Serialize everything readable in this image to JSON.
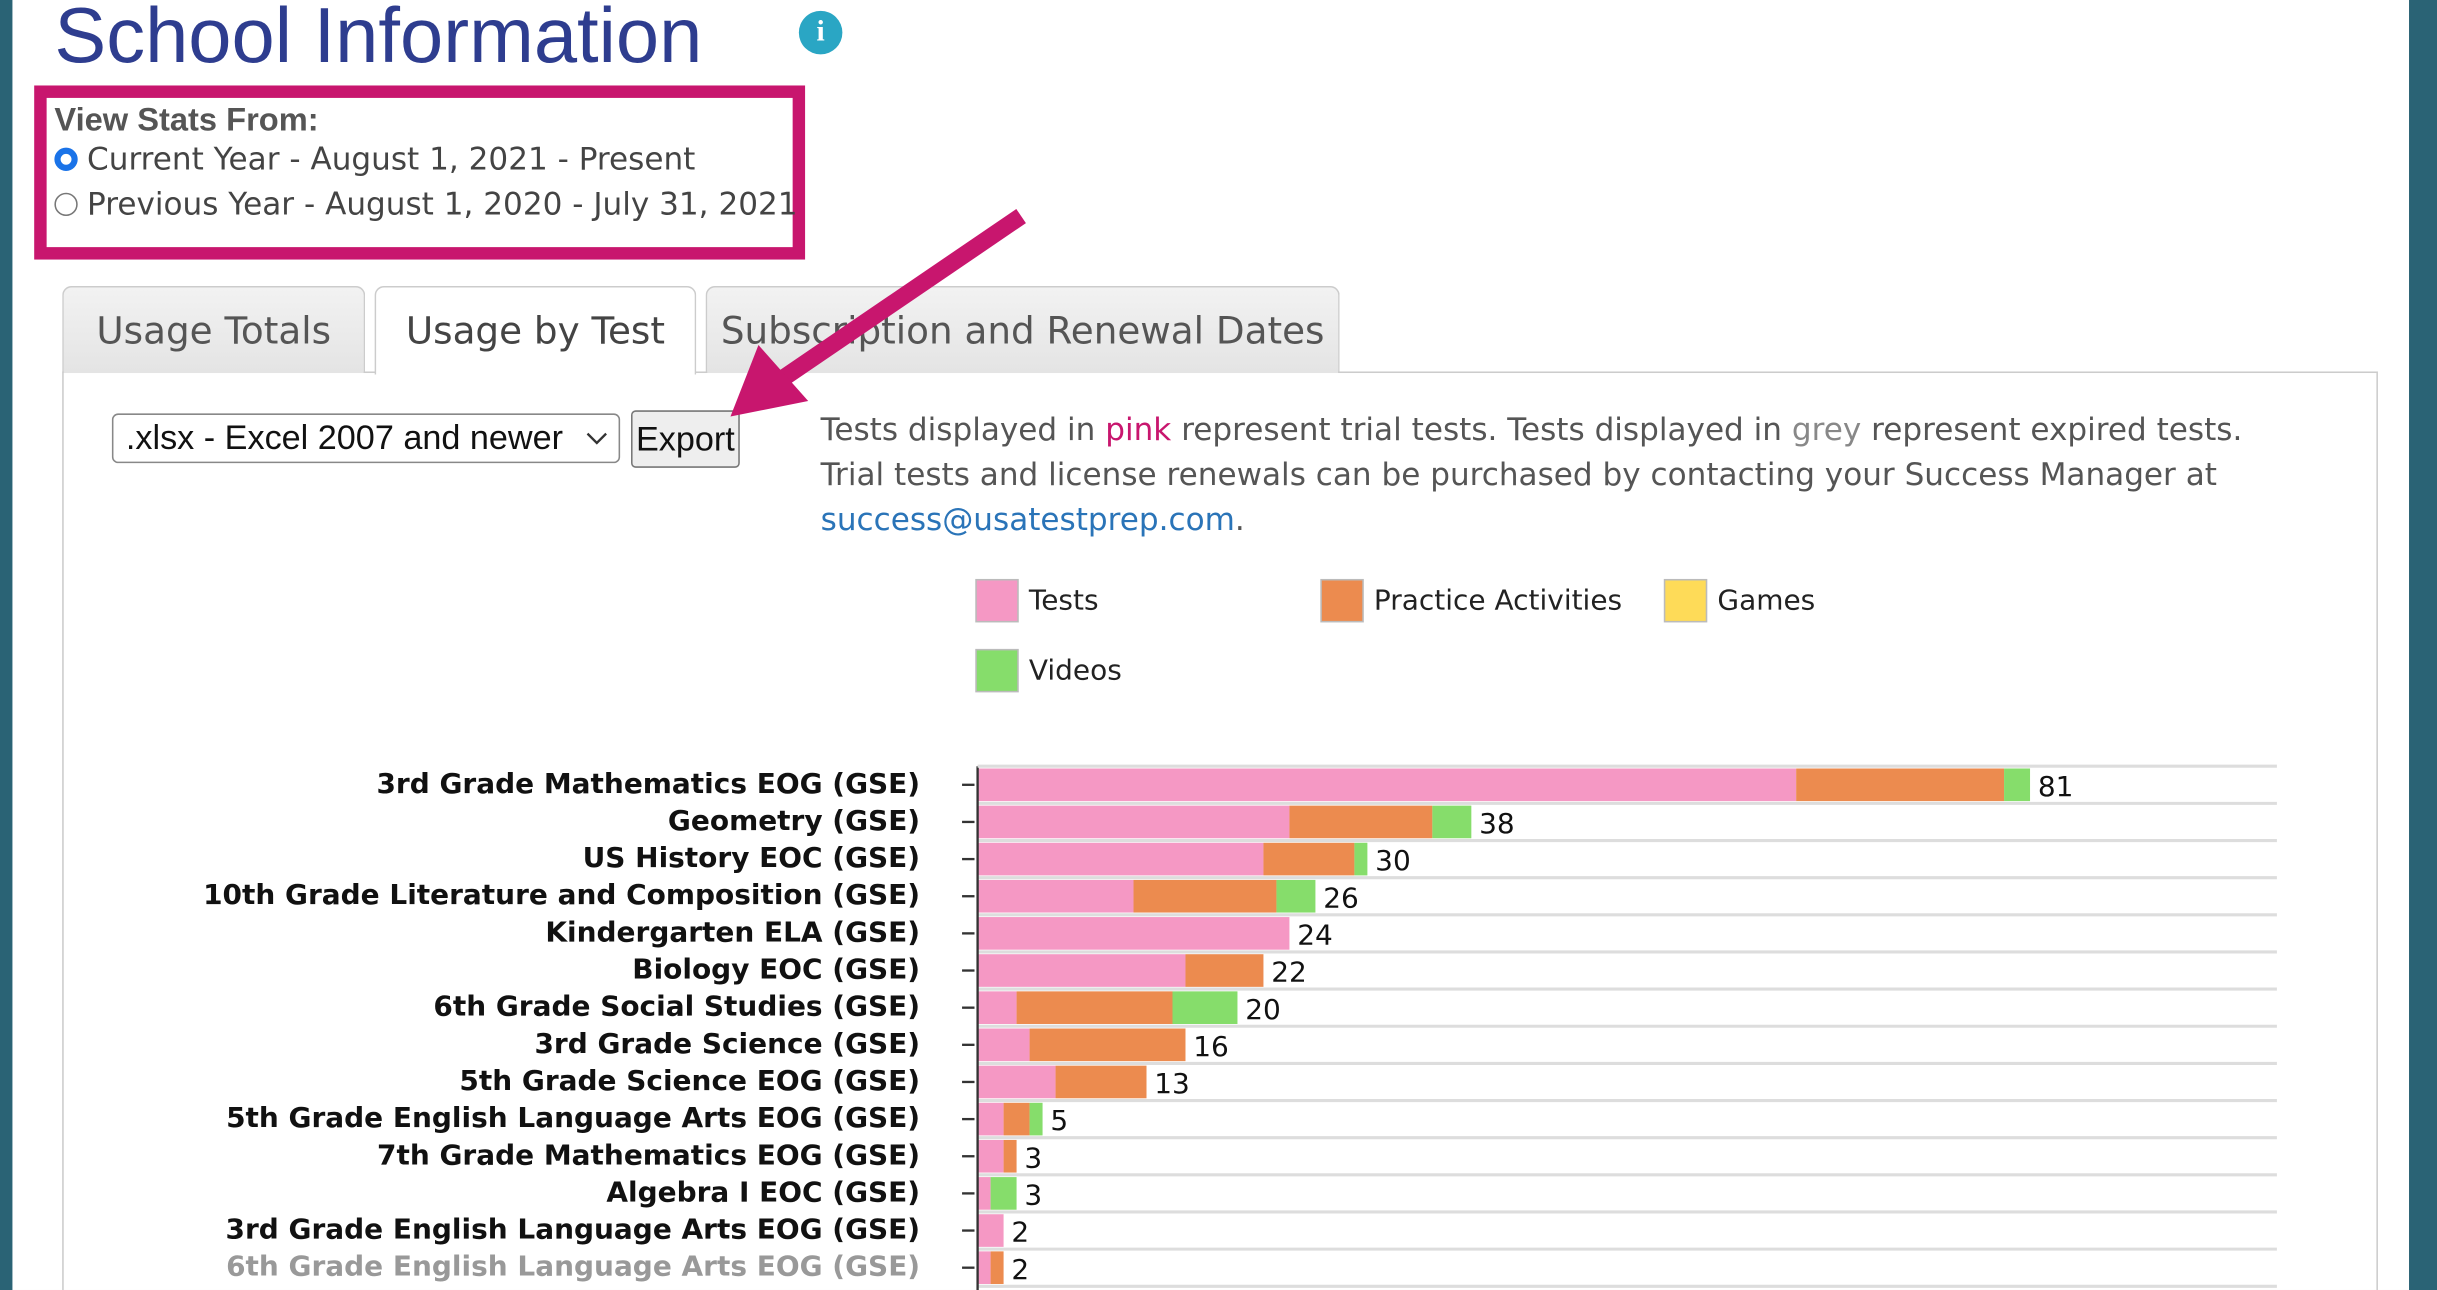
{
  "header": {
    "title": "School Information"
  },
  "stats_period": {
    "label": "View Stats From:",
    "options": [
      {
        "label": "Current Year - August 1, 2021 - Present",
        "selected": true
      },
      {
        "label": "Previous Year - August 1, 2020 - July 31, 2021",
        "selected": false
      }
    ]
  },
  "tabs": [
    {
      "label": "Usage Totals",
      "active": false
    },
    {
      "label": "Usage by Test",
      "active": true
    },
    {
      "label": "Subscription and Renewal Dates",
      "active": false
    }
  ],
  "export": {
    "format": ".xlsx - Excel 2007 and newer",
    "button": "Export"
  },
  "notice": {
    "line1": [
      "Tests displayed in ",
      "pink",
      " represent trial tests. Tests displayed in ",
      "grey",
      " represent expired tests."
    ],
    "line2": "Trial tests and license renewals can be purchased by contacting your Success Manager at",
    "email": "success@usatestprep.com",
    "end": "."
  },
  "chart_data": {
    "type": "bar",
    "orientation": "horizontal",
    "stacked": true,
    "categories": [
      "3rd Grade Mathematics EOG (GSE)",
      "Geometry (GSE)",
      "US History EOC (GSE)",
      "10th Grade Literature and Composition (GSE)",
      "Kindergarten ELA (GSE)",
      "Biology EOC (GSE)",
      "6th Grade Social Studies (GSE)",
      "3rd Grade Science (GSE)",
      "5th Grade Science EOG (GSE)",
      "5th Grade English Language Arts EOG (GSE)",
      "7th Grade Mathematics EOG (GSE)",
      "Algebra I EOC (GSE)",
      "3rd Grade English Language Arts EOG (GSE)",
      "6th Grade English Language Arts EOG (GSE)"
    ],
    "expired": [
      false,
      false,
      false,
      false,
      false,
      false,
      false,
      false,
      false,
      false,
      false,
      false,
      false,
      true
    ],
    "series": [
      {
        "name": "Tests",
        "color": "#f598c4",
        "values": [
          63,
          24,
          22,
          12,
          24,
          16,
          3,
          4,
          6,
          2,
          2,
          1,
          2,
          1
        ]
      },
      {
        "name": "Practice Activities",
        "color": "#ec8b4f",
        "values": [
          16,
          11,
          7,
          11,
          0,
          6,
          12,
          12,
          7,
          2,
          1,
          0,
          0,
          1
        ]
      },
      {
        "name": "Games",
        "color": "#fedb58",
        "values": [
          0,
          0,
          0,
          0,
          0,
          0,
          0,
          0,
          0,
          0,
          0,
          0,
          0,
          0
        ]
      },
      {
        "name": "Videos",
        "color": "#86dd6b",
        "values": [
          2,
          3,
          1,
          3,
          0,
          0,
          5,
          0,
          0,
          1,
          0,
          2,
          0,
          0
        ]
      }
    ],
    "totals": [
      81,
      38,
      30,
      26,
      24,
      22,
      20,
      16,
      13,
      5,
      3,
      3,
      2,
      2
    ],
    "xlim": [
      0,
      100
    ],
    "grid": true
  }
}
